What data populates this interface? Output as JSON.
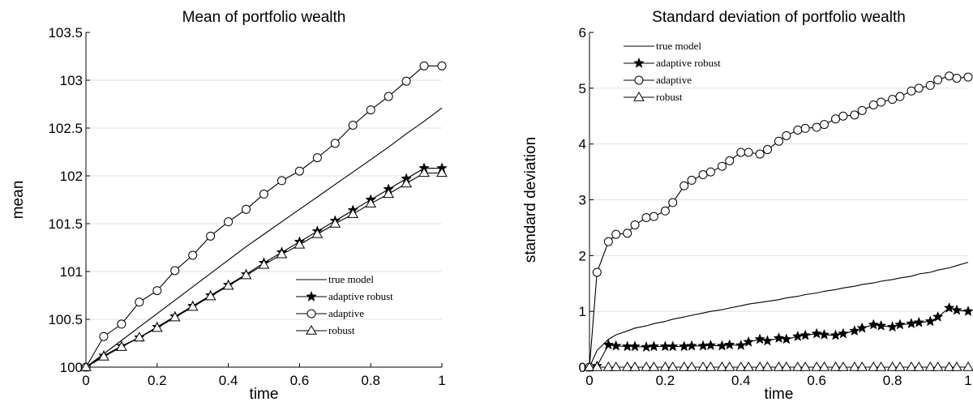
{
  "chart_data": [
    {
      "type": "line",
      "title": "Mean of portfolio wealth",
      "xlabel": "time",
      "ylabel": "mean",
      "xlim": [
        0,
        1
      ],
      "ylim": [
        100,
        103.5
      ],
      "xticks": [
        "0",
        "0.2",
        "0.4",
        "0.6",
        "0.8",
        "1"
      ],
      "yticks": [
        "100",
        "100.5",
        "101",
        "101.5",
        "102",
        "102.5",
        "103",
        "103.5"
      ],
      "grid": "horizontal",
      "legend_position": "bottom-right",
      "x": [
        0,
        0.05,
        0.1,
        0.15,
        0.2,
        0.25,
        0.3,
        0.35,
        0.4,
        0.45,
        0.5,
        0.55,
        0.6,
        0.65,
        0.7,
        0.75,
        0.8,
        0.85,
        0.9,
        0.95,
        1
      ],
      "series": [
        {
          "name": "true model",
          "marker": "none",
          "values": [
            100,
            100.14,
            100.28,
            100.42,
            100.56,
            100.7,
            100.84,
            100.98,
            101.12,
            101.26,
            101.39,
            101.52,
            101.65,
            101.78,
            101.91,
            102.04,
            102.17,
            102.3,
            102.44,
            102.57,
            102.71
          ]
        },
        {
          "name": "adaptive robust",
          "marker": "star",
          "values": [
            100,
            100.12,
            100.22,
            100.31,
            100.42,
            100.53,
            100.64,
            100.75,
            100.86,
            100.97,
            101.09,
            101.2,
            101.31,
            101.42,
            101.53,
            101.64,
            101.75,
            101.86,
            101.97,
            102.08,
            102.08
          ]
        },
        {
          "name": "adaptive",
          "marker": "circle",
          "values": [
            100,
            100.32,
            100.45,
            100.68,
            100.8,
            101.01,
            101.17,
            101.37,
            101.52,
            101.65,
            101.81,
            101.95,
            102.05,
            102.19,
            102.34,
            102.53,
            102.69,
            102.83,
            102.99,
            103.15,
            103.15
          ]
        },
        {
          "name": "robust",
          "marker": "triangle",
          "values": [
            100,
            100.11,
            100.21,
            100.31,
            100.41,
            100.52,
            100.63,
            100.74,
            100.85,
            100.96,
            101.07,
            101.18,
            101.28,
            101.39,
            101.5,
            101.6,
            101.71,
            101.81,
            101.92,
            102.03,
            102.03
          ]
        }
      ]
    },
    {
      "type": "line",
      "title": "Standard deviation of portfolio wealth",
      "xlabel": "time",
      "ylabel": "standard deviation",
      "xlim": [
        0,
        1
      ],
      "ylim": [
        0,
        6
      ],
      "xticks": [
        "0",
        "0.2",
        "0.4",
        "0.6",
        "0.8",
        "1"
      ],
      "yticks": [
        "0",
        "1",
        "2",
        "3",
        "4",
        "5",
        "6"
      ],
      "grid": "horizontal",
      "legend_position": "top-left",
      "x": [
        0,
        0.02,
        0.05,
        0.07,
        0.1,
        0.12,
        0.15,
        0.17,
        0.2,
        0.22,
        0.25,
        0.27,
        0.3,
        0.32,
        0.35,
        0.37,
        0.4,
        0.42,
        0.45,
        0.47,
        0.5,
        0.52,
        0.55,
        0.57,
        0.6,
        0.62,
        0.65,
        0.67,
        0.7,
        0.72,
        0.75,
        0.77,
        0.8,
        0.82,
        0.85,
        0.87,
        0.9,
        0.92,
        0.95,
        0.97,
        1
      ],
      "series": [
        {
          "name": "true model",
          "marker": "none",
          "values": [
            0,
            0.3,
            0.5,
            0.58,
            0.65,
            0.7,
            0.74,
            0.78,
            0.82,
            0.86,
            0.9,
            0.93,
            0.97,
            1.0,
            1.03,
            1.06,
            1.1,
            1.13,
            1.16,
            1.18,
            1.21,
            1.24,
            1.27,
            1.3,
            1.33,
            1.36,
            1.39,
            1.42,
            1.45,
            1.48,
            1.51,
            1.54,
            1.57,
            1.6,
            1.63,
            1.67,
            1.7,
            1.74,
            1.78,
            1.82,
            1.88
          ]
        },
        {
          "name": "adaptive robust",
          "marker": "star",
          "values": [
            0,
            0.02,
            0.4,
            0.38,
            0.37,
            0.37,
            0.36,
            0.37,
            0.37,
            0.37,
            0.37,
            0.38,
            0.38,
            0.39,
            0.38,
            0.4,
            0.39,
            0.45,
            0.5,
            0.47,
            0.52,
            0.5,
            0.55,
            0.57,
            0.6,
            0.58,
            0.57,
            0.6,
            0.65,
            0.7,
            0.76,
            0.74,
            0.72,
            0.76,
            0.78,
            0.8,
            0.82,
            0.9,
            1.06,
            1.02,
            1.0
          ]
        },
        {
          "name": "adaptive",
          "marker": "circle",
          "values": [
            0,
            1.7,
            2.25,
            2.38,
            2.4,
            2.55,
            2.68,
            2.7,
            2.8,
            2.95,
            3.25,
            3.35,
            3.45,
            3.5,
            3.6,
            3.7,
            3.85,
            3.85,
            3.82,
            3.9,
            4.05,
            4.15,
            4.25,
            4.28,
            4.3,
            4.35,
            4.45,
            4.5,
            4.52,
            4.6,
            4.7,
            4.75,
            4.8,
            4.85,
            4.95,
            5.0,
            5.05,
            5.15,
            5.22,
            5.18,
            5.2
          ]
        },
        {
          "name": "robust",
          "marker": "triangle",
          "values": [
            0,
            0,
            0,
            0,
            0,
            0,
            0,
            0,
            0,
            0,
            0,
            0,
            0,
            0,
            0,
            0,
            0,
            0,
            0,
            0,
            0,
            0,
            0,
            0,
            0,
            0,
            0,
            0,
            0,
            0,
            0,
            0,
            0,
            0,
            0,
            0,
            0,
            0,
            0,
            0,
            0
          ]
        }
      ]
    }
  ]
}
